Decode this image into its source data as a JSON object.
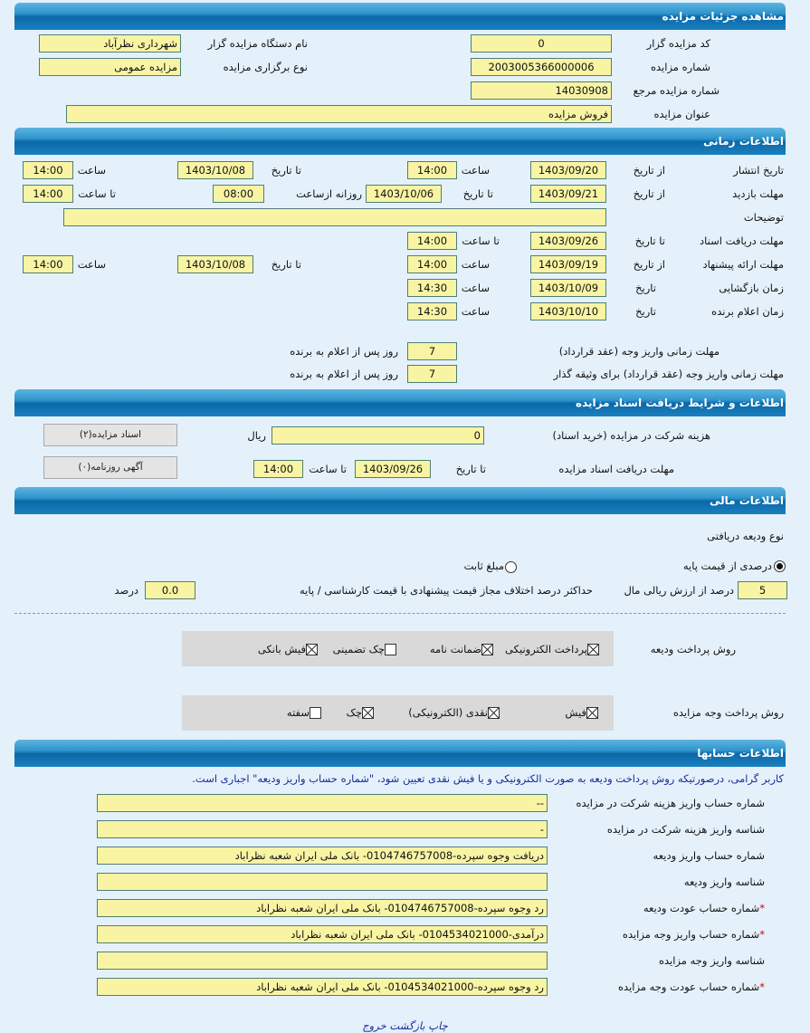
{
  "header_details": "مشاهده جزئیات مزایده",
  "details": {
    "code_label": "کد مزایده گزار",
    "code": "0",
    "org_label": "نام دستگاه مزایده گزار",
    "org": "شهرداری نظرآباد",
    "number_label": "شماره مزایده",
    "number": "2003005366000006",
    "type_label": "نوع برگزاری مزایده",
    "type": "مزایده عمومی",
    "ref_label": "شماره مزایده مرجع",
    "ref": "14030908",
    "title_label": "عنوان مزایده",
    "title": "فروش مزایده"
  },
  "header_time": "اطلاعات زمانی",
  "time": {
    "from_date": "از تاریخ",
    "to_date": "تا تاریخ",
    "hour": "ساعت",
    "to_hour": "تا ساعت",
    "date": "تاریخ",
    "daily_from": "روزانه ازساعت",
    "publish_label": "تاریخ انتشار",
    "publish_from": "1403/09/20",
    "publish_from_time": "14:00",
    "publish_to": "1403/10/08",
    "publish_to_time": "14:00",
    "visit_label": "مهلت بازدید",
    "visit_from": "1403/09/21",
    "visit_to": "1403/10/06",
    "visit_daily_from": "08:00",
    "visit_to_time": "14:00",
    "desc_label": "توضیحات",
    "desc": "",
    "docs_label": "مهلت دریافت اسناد",
    "docs_to": "1403/09/26",
    "docs_to_time": "14:00",
    "offer_label": "مهلت ارائه پیشنهاد",
    "offer_from": "1403/09/19",
    "offer_from_time": "14:00",
    "offer_to": "1403/10/08",
    "offer_to_time": "14:00",
    "open_label": "زمان بازگشایی",
    "open_date": "1403/10/09",
    "open_time": "14:30",
    "winner_label": "زمان اعلام برنده",
    "winner_date": "1403/10/10",
    "winner_time": "14:30",
    "pay_label": "مهلت زمانی واریز وجه (عقد قرارداد)",
    "pay_days": "7",
    "pay_suffix": "روز پس از اعلام به برنده",
    "pay2_label": "مهلت زمانی واریز وجه (عقد قرارداد) برای وثیقه گذار",
    "pay2_days": "7",
    "pay2_suffix": "روز پس از اعلام به برنده"
  },
  "header_docs": "اطلاعات و شرایط دریافت اسناد مزایده",
  "docs": {
    "fee_label": "هزینه شرکت در مزایده (خرید اسناد)",
    "fee": "0",
    "currency": "ریال",
    "deadline_label": "مهلت دریافت اسناد مزایده",
    "to_date": "تا تاریخ",
    "deadline_date": "1403/09/26",
    "to_hour": "تا ساعت",
    "deadline_time": "14:00",
    "docs_button": "اسناد مزایده(۲)",
    "ad_button": "آگهی روزنامه(۰)"
  },
  "header_finance": "اطلاعات مالی",
  "finance": {
    "deposit_type_label": "نوع ودیعه دریافتی",
    "radio_percent": "درصدی از قیمت پایه",
    "radio_fixed": "مبلغ ثابت",
    "selected": "percent",
    "percent": "5",
    "percent_label": "درصد از ارزش ریالی مال",
    "max_diff_label": "حداکثر درصد اختلاف مجاز قیمت پیشنهادی با قیمت کارشناسی / پایه",
    "max_diff": "0.0",
    "percent_unit": "درصد",
    "deposit_method_label": "روش پرداخت ودیعه",
    "deposit_methods": [
      {
        "label": "پرداخت الکترونیکی",
        "checked": true
      },
      {
        "label": "ضمانت نامه",
        "checked": true
      },
      {
        "label": "چک تضمینی",
        "checked": false
      },
      {
        "label": "فیش بانکی",
        "checked": true
      }
    ],
    "payment_method_label": "روش پرداخت وجه مزایده",
    "payment_methods": [
      {
        "label": "فیش",
        "checked": true
      },
      {
        "label": "نقدی (الکترونیکی)",
        "checked": true
      },
      {
        "label": "چک",
        "checked": true
      },
      {
        "label": "سفته",
        "checked": false
      }
    ]
  },
  "header_accounts": "اطلاعات حسابها",
  "accounts": {
    "note": "کاربر گرامی، درصورتیکه روش پرداخت ودیعه به صورت الکترونیکی و یا فیش نقدی تعیین شود، \"شماره حساب واریز ودیعه\" اجباری است.",
    "rows": [
      {
        "label": "شماره حساب واریز هزینه شرکت در مزایده",
        "value": "--",
        "required": false
      },
      {
        "label": "شناسه واریز هزینه شرکت در مزایده",
        "value": "-",
        "required": false
      },
      {
        "label": "شماره حساب واریز ودیعه",
        "value": "دریافت وجوه سپرده-0104746757008- بانک ملی ایران شعبه نظراباد",
        "required": false
      },
      {
        "label": "شناسه واریز ودیعه",
        "value": "",
        "required": false
      },
      {
        "label": "شماره حساب عودت ودیعه",
        "value": "رد وجوه سپرده-0104746757008- بانک ملی ایران شعبه نظراباد",
        "required": true
      },
      {
        "label": "شماره حساب واریز وجه مزایده",
        "value": "درآمدی-0104534021000- بانک ملی ایران شعبه نظراباد",
        "required": true
      },
      {
        "label": "شناسه واریز وجه مزایده",
        "value": "",
        "required": false
      },
      {
        "label": "شماره حساب عودت وجه مزایده",
        "value": "رد وجوه سپرده-0104534021000- بانک ملی ایران شعبه نظراباد",
        "required": true
      }
    ]
  },
  "footer": {
    "print": "چاپ",
    "back": "بازگشت",
    "exit": "خروج"
  }
}
